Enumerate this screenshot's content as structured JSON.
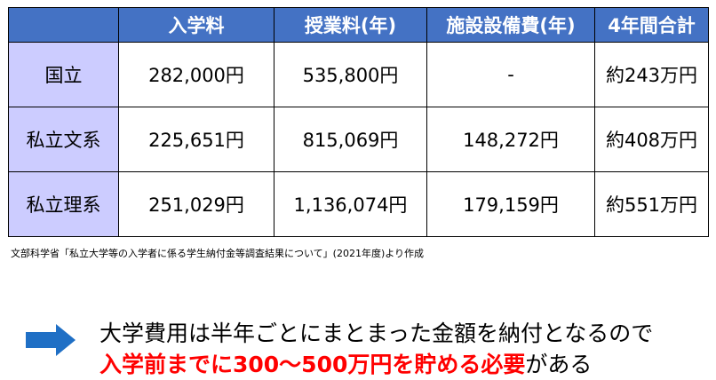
{
  "table": {
    "headers": [
      "",
      "入学料",
      "授業料(年)",
      "施設設備費(年)",
      "4年間合計"
    ],
    "rows": [
      {
        "label": "国立",
        "cells": [
          "282,000円",
          "535,800円",
          "-",
          "約243万円"
        ]
      },
      {
        "label": "私立文系",
        "cells": [
          "225,651円",
          "815,069円",
          "148,272円",
          "約408万円"
        ]
      },
      {
        "label": "私立理系",
        "cells": [
          "251,029円",
          "1,136,074円",
          "179,159円",
          "約551万円"
        ]
      }
    ]
  },
  "source_note": "文部科学省「私立大学等の入学者に係る学生納付金等調査結果について」(2021年度)より作成",
  "message": {
    "line1": "大学費用は半年ごとにまとまった金額を納付となるので",
    "line2_emphasis": "入学前までに300～500万円を貯める必要",
    "line2_rest": "がある"
  },
  "colors": {
    "header_bg": "#4472c4",
    "row_label_bg": "#ccccff",
    "arrow": "#1f6fc5",
    "emphasis": "#ff0000"
  },
  "icons": {
    "arrow": "right-arrow-icon"
  }
}
